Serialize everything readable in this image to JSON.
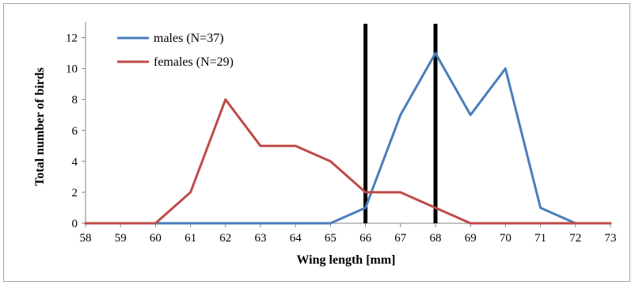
{
  "chart_data": {
    "type": "line",
    "title": "",
    "xlabel": "Wing length [mm]",
    "ylabel": "Total number of birds",
    "x": [
      58,
      59,
      60,
      61,
      62,
      63,
      64,
      65,
      66,
      67,
      68,
      69,
      70,
      71,
      72,
      73
    ],
    "xlim": [
      58,
      73
    ],
    "ylim": [
      0,
      13
    ],
    "y_ticks": [
      0,
      2,
      4,
      6,
      8,
      10,
      12
    ],
    "grid": false,
    "legend_position": "top-left",
    "series": [
      {
        "name": "males (N=37)",
        "color": "#4a7ebb",
        "values": [
          null,
          null,
          0,
          0,
          0,
          0,
          0,
          0,
          1,
          7,
          11,
          7,
          10,
          1,
          0,
          null
        ]
      },
      {
        "name": "females (N=29)",
        "color": "#be4b48",
        "values": [
          0,
          0,
          0,
          2,
          8,
          5,
          5,
          4,
          2,
          2,
          1,
          0,
          0,
          0,
          0,
          0
        ]
      }
    ],
    "reference_lines": [
      {
        "x": 66,
        "color": "#000000"
      },
      {
        "x": 68,
        "color": "#000000"
      }
    ]
  }
}
